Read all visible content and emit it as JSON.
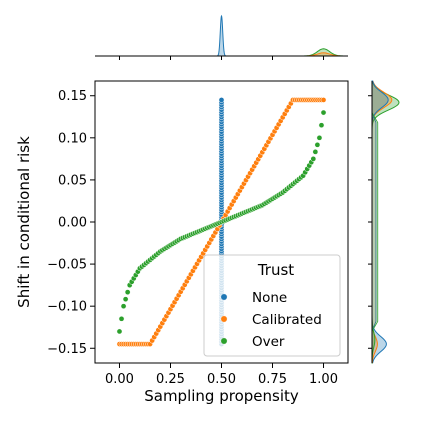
{
  "colors": {
    "none": "#1f77b4",
    "calibrated": "#ff7f0e",
    "over": "#2ca02c",
    "axis": "#000000",
    "marker_edge": "#ffffff"
  },
  "chart_data": {
    "type": "scatter",
    "subtype": "jointplot-with-marginal-kde",
    "xlabel": "Sampling propensity",
    "ylabel": "Shift in conditional risk",
    "xlim": [
      -0.12,
      1.12
    ],
    "ylim": [
      -0.1675,
      0.1675
    ],
    "xticks": [
      0.0,
      0.25,
      0.5,
      0.75,
      1.0
    ],
    "xtick_labels": [
      "0.00",
      "0.25",
      "0.50",
      "0.75",
      "1.00"
    ],
    "yticks": [
      -0.15,
      -0.1,
      -0.05,
      0.0,
      0.05,
      0.1,
      0.15
    ],
    "ytick_labels": [
      "−0.15",
      "−0.10",
      "−0.05",
      "0.00",
      "0.05",
      "0.10",
      "0.15"
    ],
    "grid": false,
    "legend": {
      "title": "Trust",
      "placement": "lower-right",
      "entries": [
        "None",
        "Calibrated",
        "Over"
      ]
    },
    "series": [
      {
        "name": "None",
        "description": "all points at x = 0.50, y spanning -0.145 to 0.145",
        "x_constant": 0.5,
        "y_range": [
          -0.145,
          0.145
        ],
        "n_points": 101
      },
      {
        "name": "Calibrated",
        "description": "flat at -0.145 for x <= 0.15, linear to +0.145 at x = 0.85, flat after",
        "x": [
          0.0,
          0.15,
          0.5,
          0.85,
          1.0
        ],
        "y": [
          -0.145,
          -0.145,
          0.0,
          0.145,
          0.145
        ],
        "n_points": 101
      },
      {
        "name": "Over",
        "description": "steep near ends, shallow slope through the middle",
        "x": [
          0.0,
          0.02,
          0.05,
          0.1,
          0.2,
          0.3,
          0.4,
          0.5,
          0.6,
          0.7,
          0.8,
          0.9,
          0.95,
          0.98,
          1.0
        ],
        "y": [
          -0.13,
          -0.1,
          -0.075,
          -0.055,
          -0.035,
          -0.02,
          -0.01,
          0.0,
          0.01,
          0.02,
          0.035,
          0.055,
          0.075,
          0.1,
          0.13
        ],
        "n_points": 101
      }
    ],
    "marginal_x": {
      "peaks": [
        {
          "series": "None",
          "x": 0.5,
          "relative_height": 1.0
        },
        {
          "series": "Over",
          "x": 1.0,
          "relative_height": 0.18
        },
        {
          "series": "Calibrated",
          "x": 1.0,
          "relative_height": 0.08
        }
      ]
    },
    "marginal_y": {
      "peaks": [
        {
          "series": "Over",
          "y": 0.142,
          "relative_height": 0.75
        },
        {
          "series": "Calibrated",
          "y": 0.145,
          "relative_height": 0.55
        },
        {
          "series": "None",
          "y": 0.145,
          "relative_height": 0.45
        },
        {
          "series": "None",
          "y": -0.145,
          "relative_height": 0.4
        },
        {
          "series": "Calibrated",
          "y": -0.145,
          "relative_height": 0.15
        },
        {
          "series": "Over",
          "y": -0.14,
          "relative_height": 0.08
        }
      ]
    }
  }
}
